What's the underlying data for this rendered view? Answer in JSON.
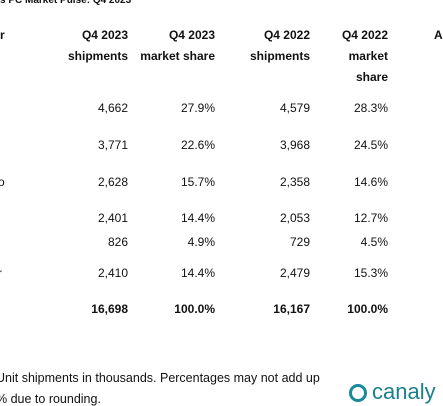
{
  "header": {
    "title": "s PC Market Pulse: Q4 2023"
  },
  "table": {
    "headers": [
      [
        "r"
      ],
      [
        "Q4 2023",
        "shipments"
      ],
      [
        "Q4 2023",
        "market share"
      ],
      [
        "Q4 2022",
        "shipments"
      ],
      [
        "Q4 2022",
        "market",
        "share"
      ],
      [
        "A"
      ]
    ],
    "rows": [
      [
        "",
        "4,662",
        "27.9%",
        "4,579",
        "28.3%"
      ],
      [
        "",
        "3,771",
        "22.6%",
        "3,968",
        "24.5%"
      ],
      [
        "o",
        "2,628",
        "15.7%",
        "2,358",
        "14.6%"
      ],
      [
        "",
        "2,401",
        "14.4%",
        "2,053",
        "12.7%"
      ],
      [
        "",
        "826",
        "4.9%",
        "729",
        "4.5%"
      ],
      [
        "r",
        "2,410",
        "14.4%",
        "2,479",
        "15.3%"
      ]
    ],
    "total": [
      "",
      "16,698",
      "100.0%",
      "16,167",
      "100.0%"
    ]
  },
  "footer": {
    "notes": [
      "Unit shipments in thousands. Percentages may not add up",
      "% due to rounding."
    ],
    "logo": "canaly"
  }
}
